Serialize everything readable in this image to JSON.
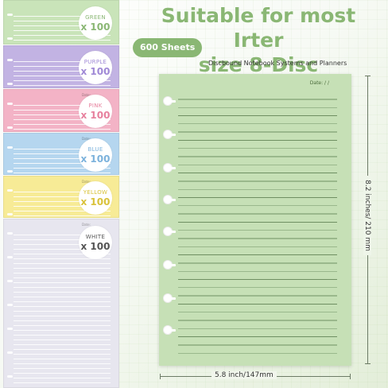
{
  "title_line1": "Suitable for most Irter",
  "title_line2": "size 8-Disc",
  "sheets_pill": "600 Sheets",
  "subtitle": "Discbound Notebook Systems and Planners",
  "date_label": "Date:    /      /",
  "sheet_date_label": "Date:",
  "height_label": "8.2 inches/ 210 mm",
  "width_label": "5.8 inch/147mm",
  "colors": [
    {
      "name": "GREEN",
      "count": "x 100",
      "bg": "#c9e4b9",
      "text": "#8ab774"
    },
    {
      "name": "PURPLE",
      "count": "x 100",
      "bg": "#c2b3e3",
      "text": "#a089d6"
    },
    {
      "name": "PINK",
      "count": "x 100",
      "bg": "#f3b3c6",
      "text": "#e7819e"
    },
    {
      "name": "BLUE",
      "count": "x 100",
      "bg": "#b5d6ef",
      "text": "#7cb2dc"
    },
    {
      "name": "YELLOW",
      "count": "x 100",
      "bg": "#f7eb96",
      "text": "#d9c23a"
    },
    {
      "name": "WHITE",
      "count": "x 100",
      "bg": "#e7e6ef",
      "text": "#555555"
    }
  ],
  "accent_green": "#8ab774",
  "sample_sheet_color": "#c6e0b6"
}
